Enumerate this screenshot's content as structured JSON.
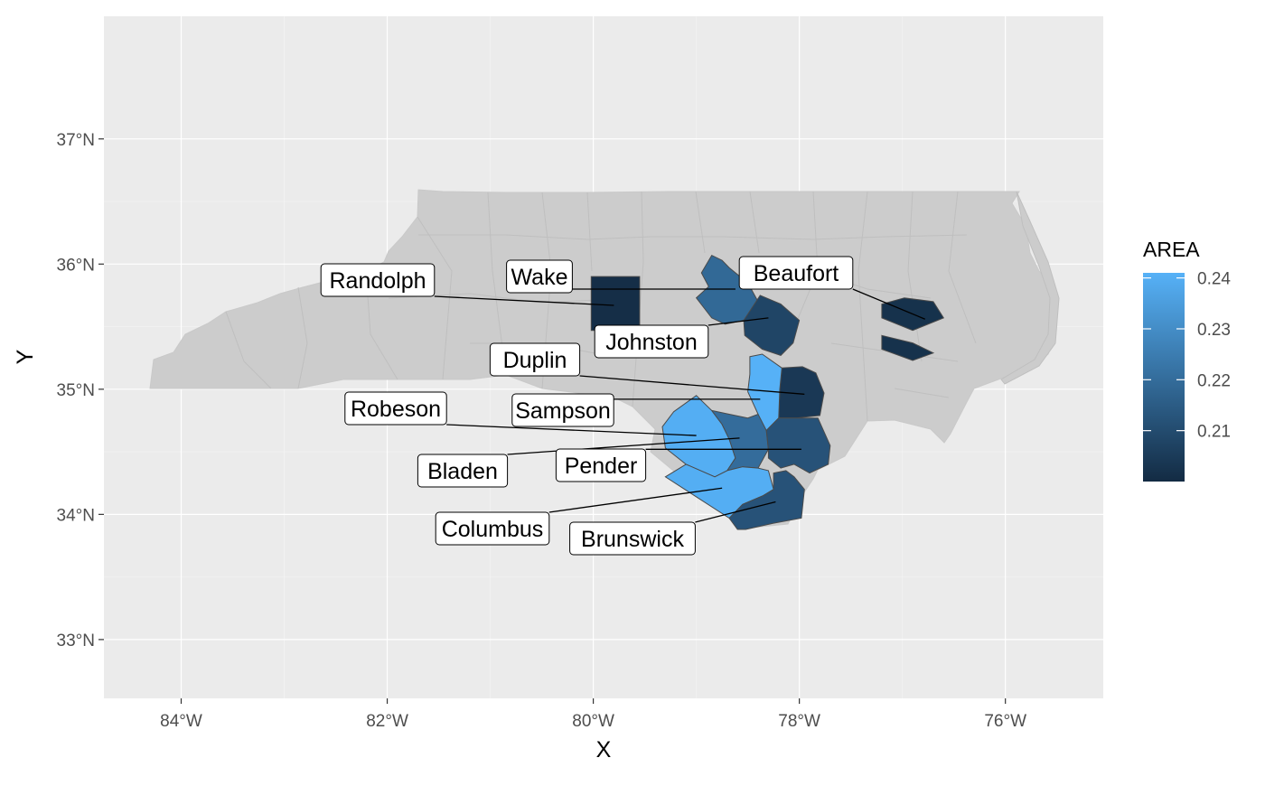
{
  "map": {
    "region": "North Carolina",
    "projection": "lon/lat",
    "xlabel": "X",
    "ylabel": "Y",
    "xlim": [
      -84.75,
      -75.05
    ],
    "ylim": [
      32.53,
      37.98
    ],
    "x_ticks": [
      {
        "value": -84,
        "label": "84°W"
      },
      {
        "value": -82,
        "label": "82°W"
      },
      {
        "value": -80,
        "label": "80°W"
      },
      {
        "value": -78,
        "label": "78°W"
      },
      {
        "value": -76,
        "label": "76°W"
      }
    ],
    "y_ticks": [
      {
        "value": 33,
        "label": "33°N"
      },
      {
        "value": 34,
        "label": "34°N"
      },
      {
        "value": 35,
        "label": "35°N"
      },
      {
        "value": 36,
        "label": "36°N"
      },
      {
        "value": 37,
        "label": "37°N"
      }
    ],
    "grid": true,
    "background_color": "#ebebeb",
    "base_fill_color": "#cccccc",
    "fill_variable": "AREA"
  },
  "legend": {
    "title": "AREA",
    "position": "right",
    "min": 0.2,
    "max": 0.241,
    "low_color": "#132b43",
    "high_color": "#56b1f7",
    "breaks": [
      {
        "value": 0.24,
        "label": "0.24"
      },
      {
        "value": 0.23,
        "label": "0.23"
      },
      {
        "value": 0.22,
        "label": "0.22"
      },
      {
        "value": 0.21,
        "label": "0.21"
      }
    ]
  },
  "highlighted_counties": [
    {
      "name": "Randolph",
      "area": 0.201,
      "centroid": [
        -79.8,
        35.7
      ],
      "polygons": [
        [
          [
            -80.02,
            35.9
          ],
          [
            -79.55,
            35.9
          ],
          [
            -79.55,
            35.47
          ],
          [
            -80.02,
            35.47
          ]
        ]
      ]
    },
    {
      "name": "Wake",
      "area": 0.219,
      "centroid": [
        -78.64,
        35.8
      ],
      "polygons": [
        [
          [
            -78.95,
            35.93
          ],
          [
            -78.85,
            36.07
          ],
          [
            -78.75,
            36.03
          ],
          [
            -78.68,
            35.97
          ],
          [
            -78.5,
            35.85
          ],
          [
            -78.38,
            35.67
          ],
          [
            -78.54,
            35.55
          ],
          [
            -78.72,
            35.52
          ],
          [
            -78.85,
            35.57
          ],
          [
            -79.0,
            35.73
          ],
          [
            -78.88,
            35.82
          ]
        ]
      ]
    },
    {
      "name": "Johnston",
      "area": 0.208,
      "centroid": [
        -78.3,
        35.58
      ],
      "polygons": [
        [
          [
            -78.38,
            35.75
          ],
          [
            -78.18,
            35.68
          ],
          [
            -78.0,
            35.55
          ],
          [
            -78.06,
            35.37
          ],
          [
            -78.18,
            35.27
          ],
          [
            -78.36,
            35.32
          ],
          [
            -78.53,
            35.43
          ],
          [
            -78.54,
            35.55
          ]
        ]
      ]
    },
    {
      "name": "Beaufort",
      "area": 0.202,
      "centroid": [
        -76.8,
        35.58
      ],
      "polygons": [
        [
          [
            -77.2,
            35.68
          ],
          [
            -76.98,
            35.73
          ],
          [
            -76.7,
            35.7
          ],
          [
            -76.6,
            35.57
          ],
          [
            -76.9,
            35.47
          ],
          [
            -77.2,
            35.57
          ]
        ],
        [
          [
            -77.2,
            35.43
          ],
          [
            -76.9,
            35.37
          ],
          [
            -76.7,
            35.29
          ],
          [
            -76.9,
            35.23
          ],
          [
            -77.2,
            35.32
          ]
        ]
      ]
    },
    {
      "name": "Duplin",
      "area": 0.204,
      "centroid": [
        -77.95,
        34.93
      ],
      "polygons": [
        [
          [
            -78.17,
            35.17
          ],
          [
            -77.97,
            35.18
          ],
          [
            -77.84,
            35.13
          ],
          [
            -77.76,
            34.97
          ],
          [
            -77.8,
            34.79
          ],
          [
            -78.03,
            34.77
          ],
          [
            -78.2,
            34.77
          ],
          [
            -78.19,
            35.0
          ]
        ]
      ]
    },
    {
      "name": "Sampson",
      "area": 0.241,
      "centroid": [
        -78.35,
        34.98
      ],
      "polygons": [
        [
          [
            -78.48,
            35.26
          ],
          [
            -78.36,
            35.28
          ],
          [
            -78.17,
            35.17
          ],
          [
            -78.19,
            35.0
          ],
          [
            -78.2,
            34.77
          ],
          [
            -78.32,
            34.67
          ],
          [
            -78.42,
            34.68
          ],
          [
            -78.4,
            34.8
          ],
          [
            -78.5,
            34.98
          ],
          [
            -78.48,
            35.12
          ]
        ]
      ]
    },
    {
      "name": "Robeson",
      "area": 0.24,
      "centroid": [
        -78.98,
        34.64
      ],
      "polygons": [
        [
          [
            -79.22,
            34.82
          ],
          [
            -79.0,
            34.95
          ],
          [
            -78.85,
            34.83
          ],
          [
            -78.75,
            34.72
          ],
          [
            -78.68,
            34.6
          ],
          [
            -78.62,
            34.45
          ],
          [
            -78.7,
            34.35
          ],
          [
            -78.82,
            34.3
          ],
          [
            -79.1,
            34.4
          ],
          [
            -79.3,
            34.53
          ],
          [
            -79.33,
            34.7
          ]
        ]
      ]
    },
    {
      "name": "Bladen",
      "area": 0.22,
      "centroid": [
        -78.55,
        34.61
      ],
      "polygons": [
        [
          [
            -78.85,
            34.83
          ],
          [
            -78.68,
            34.8
          ],
          [
            -78.5,
            34.77
          ],
          [
            -78.4,
            34.8
          ],
          [
            -78.32,
            34.67
          ],
          [
            -78.3,
            34.52
          ],
          [
            -78.4,
            34.37
          ],
          [
            -78.55,
            34.38
          ],
          [
            -78.7,
            34.35
          ],
          [
            -78.62,
            34.45
          ],
          [
            -78.68,
            34.6
          ],
          [
            -78.75,
            34.72
          ]
        ]
      ]
    },
    {
      "name": "Pender",
      "area": 0.212,
      "centroid": [
        -77.95,
        34.5
      ],
      "polygons": [
        [
          [
            -78.32,
            34.67
          ],
          [
            -78.2,
            34.77
          ],
          [
            -78.03,
            34.77
          ],
          [
            -77.82,
            34.77
          ],
          [
            -77.7,
            34.55
          ],
          [
            -77.72,
            34.4
          ],
          [
            -77.9,
            34.33
          ],
          [
            -78.05,
            34.4
          ],
          [
            -78.18,
            34.37
          ],
          [
            -78.3,
            34.45
          ],
          [
            -78.3,
            34.52
          ]
        ]
      ]
    },
    {
      "name": "Columbus",
      "area": 0.24,
      "centroid": [
        -78.75,
        34.22
      ],
      "polygons": [
        [
          [
            -78.82,
            34.3
          ],
          [
            -78.7,
            34.35
          ],
          [
            -78.55,
            34.38
          ],
          [
            -78.4,
            34.37
          ],
          [
            -78.3,
            34.35
          ],
          [
            -78.25,
            34.2
          ],
          [
            -78.35,
            34.15
          ],
          [
            -78.55,
            34.08
          ],
          [
            -78.68,
            33.97
          ],
          [
            -79.3,
            34.3
          ],
          [
            -79.1,
            34.4
          ]
        ]
      ]
    },
    {
      "name": "Brunswick",
      "area": 0.212,
      "centroid": [
        -78.2,
        34.05
      ],
      "polygons": [
        [
          [
            -78.25,
            34.33
          ],
          [
            -78.13,
            34.35
          ],
          [
            -78.05,
            34.3
          ],
          [
            -77.95,
            34.2
          ],
          [
            -77.98,
            33.97
          ],
          [
            -78.25,
            33.93
          ],
          [
            -78.52,
            33.88
          ],
          [
            -78.6,
            33.88
          ],
          [
            -78.68,
            33.97
          ],
          [
            -78.55,
            34.08
          ],
          [
            -78.35,
            34.15
          ],
          [
            -78.25,
            34.2
          ]
        ]
      ]
    }
  ],
  "labels": [
    {
      "name": "Randolph",
      "text": "Randolph",
      "point": [
        -79.8,
        35.67
      ]
    },
    {
      "name": "Wake",
      "text": "Wake",
      "point": [
        -78.62,
        35.8
      ]
    },
    {
      "name": "Beaufort",
      "text": "Beaufort",
      "point": [
        -76.78,
        35.56
      ]
    },
    {
      "name": "Johnston",
      "text": "Johnston",
      "point": [
        -78.3,
        35.57
      ]
    },
    {
      "name": "Duplin",
      "text": "Duplin",
      "point": [
        -77.95,
        34.96
      ]
    },
    {
      "name": "Robeson",
      "text": "Robeson",
      "point": [
        -79.0,
        34.63
      ]
    },
    {
      "name": "Sampson",
      "text": "Sampson",
      "point": [
        -78.38,
        34.92
      ]
    },
    {
      "name": "Bladen",
      "text": "Bladen",
      "point": [
        -78.58,
        34.61
      ]
    },
    {
      "name": "Pender",
      "text": "Pender",
      "point": [
        -77.98,
        34.52
      ]
    },
    {
      "name": "Columbus",
      "text": "Columbus",
      "point": [
        -78.75,
        34.21
      ]
    },
    {
      "name": "Brunswick",
      "text": "Brunswick",
      "point": [
        -78.23,
        34.1
      ]
    }
  ]
}
